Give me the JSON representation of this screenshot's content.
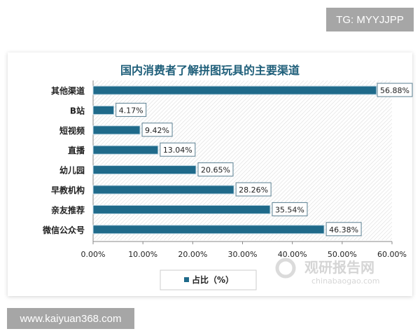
{
  "watermarks": {
    "top_right": "TG: MYYJJPP",
    "bottom_left": "www.kaiyuan368.com",
    "logo_cn": "观研报告网",
    "logo_en": "chinabaogao.com"
  },
  "colors": {
    "bar": "#1f6a8a",
    "title": "#1f5f7a"
  },
  "chart_data": {
    "type": "bar",
    "orientation": "horizontal",
    "title": "国内消费者了解拼图玩具的主要渠道",
    "categories": [
      "其他渠道",
      "B站",
      "短视频",
      "直播",
      "幼儿园",
      "早教机构",
      "亲友推荐",
      "微信公众号"
    ],
    "series": [
      {
        "name": "占比（%）",
        "values": [
          56.88,
          4.17,
          9.42,
          13.04,
          20.65,
          28.26,
          35.54,
          46.38
        ]
      }
    ],
    "data_labels": [
      "56.88%",
      "4.17%",
      "9.42%",
      "13.04%",
      "20.65%",
      "28.26%",
      "35.54%",
      "46.38%"
    ],
    "xlim": [
      0,
      60
    ],
    "x_ticks": [
      "0.00%",
      "10.00%",
      "20.00%",
      "30.00%",
      "40.00%",
      "50.00%",
      "60.00%"
    ],
    "legend": "bottom",
    "grid": false
  }
}
